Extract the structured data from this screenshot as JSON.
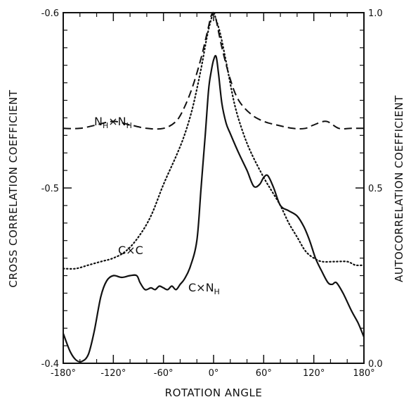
{
  "chart_data": {
    "type": "line",
    "xlabel": "ROTATION ANGLE",
    "ylabel_left": "CROSS CORRELATION COEFFICIENT",
    "ylabel_right": "AUTOCORRELATION COEFFICIENT",
    "x_ticks": [
      "-180°",
      "-120°",
      "-60°",
      "0°",
      "60°",
      "120°",
      "180°"
    ],
    "x_tick_values": [
      -180,
      -120,
      -60,
      0,
      60,
      120,
      180
    ],
    "left_ticks": [
      "-0.6",
      "-0.5",
      "-0.4"
    ],
    "left_tick_values": [
      -0.6,
      -0.5,
      -0.4
    ],
    "right_ticks": [
      "1.0",
      "0.5",
      "0.0"
    ],
    "right_tick_values": [
      1.0,
      0.5,
      0.0
    ],
    "xlim": [
      -180,
      180
    ],
    "ylim_left": [
      -0.6,
      -0.4
    ],
    "ylim_right": [
      0.0,
      1.0
    ],
    "grid": false,
    "series": [
      {
        "name": "N_H×N_H",
        "label_main": "N",
        "label_sub": "H",
        "label_op": "×",
        "axis": "right",
        "style": "dashed",
        "points": [
          [
            -180,
            0.67
          ],
          [
            -160,
            0.67
          ],
          [
            -140,
            0.68
          ],
          [
            -120,
            0.69
          ],
          [
            -100,
            0.68
          ],
          [
            -80,
            0.67
          ],
          [
            -60,
            0.67
          ],
          [
            -45,
            0.69
          ],
          [
            -35,
            0.73
          ],
          [
            -25,
            0.79
          ],
          [
            -15,
            0.87
          ],
          [
            -8,
            0.94
          ],
          [
            -3,
            0.99
          ],
          [
            0,
            1.0
          ],
          [
            3,
            0.98
          ],
          [
            10,
            0.9
          ],
          [
            20,
            0.81
          ],
          [
            30,
            0.75
          ],
          [
            45,
            0.71
          ],
          [
            60,
            0.69
          ],
          [
            75,
            0.68
          ],
          [
            95,
            0.67
          ],
          [
            110,
            0.67
          ],
          [
            120,
            0.68
          ],
          [
            135,
            0.69
          ],
          [
            150,
            0.67
          ],
          [
            165,
            0.67
          ],
          [
            180,
            0.67
          ]
        ]
      },
      {
        "name": "C×C",
        "label_main": "C",
        "label_op": "×C",
        "axis": "right",
        "style": "dotted",
        "points": [
          [
            -180,
            0.27
          ],
          [
            -165,
            0.27
          ],
          [
            -150,
            0.28
          ],
          [
            -135,
            0.29
          ],
          [
            -120,
            0.3
          ],
          [
            -105,
            0.32
          ],
          [
            -90,
            0.36
          ],
          [
            -75,
            0.42
          ],
          [
            -60,
            0.51
          ],
          [
            -45,
            0.59
          ],
          [
            -35,
            0.65
          ],
          [
            -25,
            0.73
          ],
          [
            -15,
            0.84
          ],
          [
            -8,
            0.93
          ],
          [
            -3,
            0.98
          ],
          [
            0,
            1.0
          ],
          [
            3,
            0.98
          ],
          [
            8,
            0.94
          ],
          [
            15,
            0.86
          ],
          [
            25,
            0.74
          ],
          [
            35,
            0.66
          ],
          [
            45,
            0.6
          ],
          [
            60,
            0.53
          ],
          [
            70,
            0.49
          ],
          [
            80,
            0.45
          ],
          [
            90,
            0.4
          ],
          [
            100,
            0.36
          ],
          [
            110,
            0.32
          ],
          [
            120,
            0.3
          ],
          [
            130,
            0.29
          ],
          [
            145,
            0.29
          ],
          [
            160,
            0.29
          ],
          [
            170,
            0.28
          ],
          [
            180,
            0.28
          ]
        ]
      },
      {
        "name": "C×N_H",
        "label_main": "C×N",
        "label_sub": "H",
        "axis": "left",
        "style": "solid",
        "points": [
          [
            -180,
            -0.417
          ],
          [
            -172,
            -0.407
          ],
          [
            -165,
            -0.402
          ],
          [
            -158,
            -0.401
          ],
          [
            -150,
            -0.405
          ],
          [
            -143,
            -0.418
          ],
          [
            -135,
            -0.438
          ],
          [
            -128,
            -0.447
          ],
          [
            -120,
            -0.45
          ],
          [
            -110,
            -0.449
          ],
          [
            -100,
            -0.45
          ],
          [
            -92,
            -0.45
          ],
          [
            -88,
            -0.446
          ],
          [
            -82,
            -0.442
          ],
          [
            -75,
            -0.443
          ],
          [
            -70,
            -0.442
          ],
          [
            -65,
            -0.444
          ],
          [
            -60,
            -0.443
          ],
          [
            -55,
            -0.442
          ],
          [
            -50,
            -0.444
          ],
          [
            -45,
            -0.442
          ],
          [
            -40,
            -0.445
          ],
          [
            -35,
            -0.448
          ],
          [
            -28,
            -0.455
          ],
          [
            -20,
            -0.47
          ],
          [
            -15,
            -0.5
          ],
          [
            -10,
            -0.53
          ],
          [
            -6,
            -0.556
          ],
          [
            -3,
            -0.566
          ],
          [
            0,
            -0.573
          ],
          [
            3,
            -0.575
          ],
          [
            6,
            -0.565
          ],
          [
            10,
            -0.548
          ],
          [
            15,
            -0.537
          ],
          [
            20,
            -0.531
          ],
          [
            30,
            -0.52
          ],
          [
            40,
            -0.51
          ],
          [
            48,
            -0.501
          ],
          [
            55,
            -0.502
          ],
          [
            60,
            -0.506
          ],
          [
            65,
            -0.507
          ],
          [
            72,
            -0.5
          ],
          [
            80,
            -0.49
          ],
          [
            90,
            -0.487
          ],
          [
            100,
            -0.484
          ],
          [
            108,
            -0.478
          ],
          [
            115,
            -0.47
          ],
          [
            122,
            -0.46
          ],
          [
            130,
            -0.452
          ],
          [
            137,
            -0.446
          ],
          [
            142,
            -0.445
          ],
          [
            147,
            -0.446
          ],
          [
            155,
            -0.44
          ],
          [
            165,
            -0.43
          ],
          [
            173,
            -0.423
          ],
          [
            180,
            -0.415
          ]
        ]
      }
    ]
  }
}
